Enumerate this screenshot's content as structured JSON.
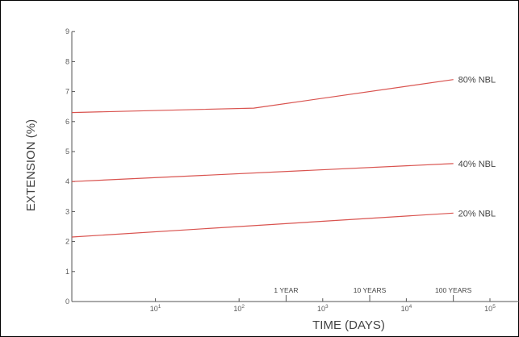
{
  "chart_data": {
    "type": "line",
    "xlabel": "TIME (DAYS)",
    "ylabel": "EXTENSION (%)",
    "x_scale": "log",
    "xlim": [
      1,
      1000000
    ],
    "ylim": [
      0,
      9
    ],
    "grid": false,
    "legend": "none",
    "x_ticks": [
      {
        "value": 10,
        "base": "10",
        "exp": "1"
      },
      {
        "value": 100,
        "base": "10",
        "exp": "2"
      },
      {
        "value": 1000,
        "base": "10",
        "exp": "3"
      },
      {
        "value": 10000,
        "base": "10",
        "exp": "4"
      },
      {
        "value": 100000,
        "base": "10",
        "exp": "5"
      }
    ],
    "y_ticks": [
      "0",
      "1",
      "2",
      "3",
      "4",
      "5",
      "6",
      "7",
      "8",
      "9"
    ],
    "time_markers": [
      {
        "label": "1 YEAR",
        "x": 365
      },
      {
        "label": "10 YEARS",
        "x": 3650
      },
      {
        "label": "100 YEARS",
        "x": 36500
      }
    ],
    "series": [
      {
        "name": "80% NBL",
        "color": "#d9534f",
        "points": [
          {
            "x": 1,
            "y": 6.3
          },
          {
            "x": 150,
            "y": 6.45
          },
          {
            "x": 36500,
            "y": 7.4
          }
        ]
      },
      {
        "name": "40% NBL",
        "color": "#d9534f",
        "points": [
          {
            "x": 1,
            "y": 4.0
          },
          {
            "x": 36500,
            "y": 4.6
          }
        ]
      },
      {
        "name": "20% NBL",
        "color": "#d9534f",
        "points": [
          {
            "x": 1,
            "y": 2.15
          },
          {
            "x": 36500,
            "y": 2.95
          }
        ]
      }
    ]
  }
}
